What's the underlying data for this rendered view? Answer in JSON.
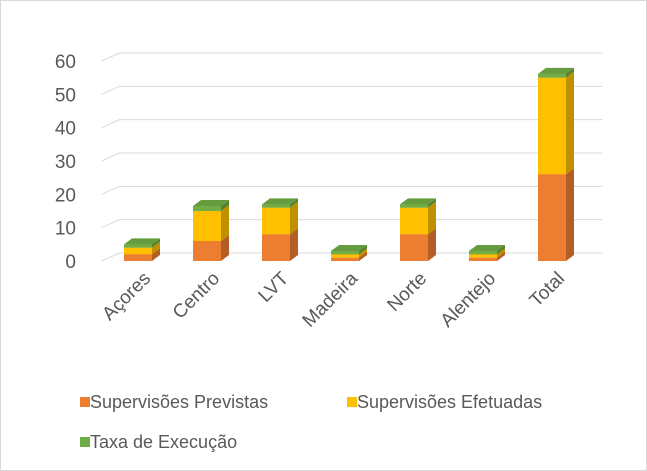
{
  "chart_data": {
    "type": "bar3d-stacked",
    "categories": [
      "Açores",
      "Centro",
      "LVT",
      "Madeira",
      "Norte",
      "Alentejo",
      "Total"
    ],
    "series": [
      {
        "name": "Supervisões Previstas",
        "color": "#ed7d31",
        "values": [
          2,
          6,
          8,
          1,
          8,
          1,
          26
        ]
      },
      {
        "name": "Supervisões Efetuadas",
        "color": "#ffc000",
        "values": [
          2,
          9,
          8,
          1,
          8,
          1,
          29
        ]
      },
      {
        "name": "Taxa de Execução",
        "color": "#70ad47",
        "values": [
          1,
          1.5,
          1,
          1,
          1,
          1,
          1.12
        ]
      }
    ],
    "ylim": [
      0,
      60
    ],
    "yticks": [
      0,
      10,
      20,
      30,
      40,
      50,
      60
    ],
    "grid": true,
    "legend": "bottom"
  }
}
